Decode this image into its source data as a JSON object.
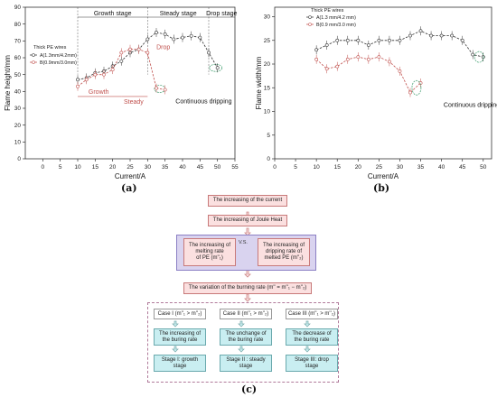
{
  "chart_data": [
    {
      "type": "line",
      "panel_label": "(a)",
      "xlabel": "Current/A",
      "ylabel": "Flame height/mm",
      "xlim": [
        -5,
        55
      ],
      "ylim": [
        0,
        90
      ],
      "x_ticks": [
        0,
        5,
        10,
        15,
        20,
        25,
        30,
        35,
        40,
        45,
        50,
        55
      ],
      "y_ticks": [
        0,
        10,
        20,
        30,
        40,
        50,
        60,
        70,
        80,
        90
      ],
      "legend_title": "Thick PE wires",
      "series": [
        {
          "name": "A(1.3mm/4.2mm)",
          "color": "#333333",
          "style": "dashed",
          "x": [
            10,
            12.5,
            15,
            17.5,
            20,
            22.5,
            25,
            27.5,
            30,
            32.5,
            35,
            37.5,
            40,
            42.5,
            45,
            47.5,
            50
          ],
          "y": [
            47,
            48,
            51,
            52,
            55,
            58,
            63,
            65,
            71,
            75,
            74,
            71,
            72,
            73,
            72,
            63,
            54
          ]
        },
        {
          "name": "B(0.9mm/3.0mm)",
          "color": "#c0504d",
          "style": "dashed",
          "x": [
            10,
            12.5,
            15,
            17.5,
            20,
            22.5,
            25,
            27.5,
            30,
            32.5,
            35
          ],
          "y": [
            43,
            47,
            50,
            50,
            53,
            63,
            65,
            65,
            63,
            42,
            41
          ]
        }
      ],
      "annotations": {
        "stages": [
          "Growth stage",
          "Steady stage",
          "Drop stage"
        ],
        "growth": "Growth",
        "steady": "Steady",
        "drop": "Drop",
        "dripping": "Continuous dripping"
      }
    },
    {
      "type": "line",
      "panel_label": "(b)",
      "xlabel": "Current/A",
      "ylabel": "Flame width/mm",
      "xlim": [
        0,
        52
      ],
      "ylim": [
        0,
        32
      ],
      "x_ticks": [
        0,
        5,
        10,
        15,
        20,
        25,
        30,
        35,
        40,
        45,
        50
      ],
      "y_ticks": [
        0,
        5,
        10,
        15,
        20,
        25,
        30
      ],
      "legend_title": "Thick PE wires",
      "series": [
        {
          "name": "A(1.3 mm/4.2 mm)",
          "color": "#333333",
          "style": "dashed",
          "x": [
            10,
            12.5,
            15,
            17.5,
            20,
            22.5,
            25,
            27.5,
            30,
            32.5,
            35,
            37.5,
            40,
            42.5,
            45,
            47.5,
            50
          ],
          "y": [
            23,
            24,
            25,
            25,
            25,
            24,
            25,
            25,
            25,
            26,
            27,
            26,
            26,
            26,
            25,
            22,
            21.5
          ]
        },
        {
          "name": "B(0.9 mm/3.0 mm)",
          "color": "#c0504d",
          "style": "dashed",
          "x": [
            10,
            12.5,
            15,
            17.5,
            20,
            22.5,
            25,
            27.5,
            30,
            32.5,
            35
          ],
          "y": [
            21,
            19,
            19.5,
            21,
            21.5,
            21,
            21.5,
            20.5,
            18.5,
            14,
            16
          ]
        }
      ],
      "annotations": {
        "dripping": "Continuous dripping"
      }
    }
  ],
  "flowchart": {
    "panel_label": "(c)",
    "n1": "The increasing of the current",
    "n2": "The increasing of Joule Heat",
    "left_a": "The increasing of",
    "left_b": "melting rate",
    "left_c": "of PE (m''₁)",
    "vs": "V.S.",
    "right_a": "The increasing of",
    "right_b": "dripping rate of",
    "right_c": "melted PE (m''₂)",
    "n4": "The variation of the burning rate  (m'' = m''₁ − m''₂)",
    "cases": [
      {
        "case": "Case I  (m''₁ > m''₂)",
        "effect_a": "The increasing of",
        "effect_b": "the buring rate",
        "stage_a": "Stage I: growth",
        "stage_b": "stage"
      },
      {
        "case": "Case II  (m''₁ > m''₂)",
        "effect_a": "The unchange of",
        "effect_b": "the buring rate",
        "stage_a": "Stage II : steady",
        "stage_b": "stage"
      },
      {
        "case": "Case III  (m''₁ > m''₂)",
        "effect_a": "The decrease of",
        "effect_b": "the buring rate",
        "stage_a": "Stage III: drop",
        "stage_b": "stage"
      }
    ]
  }
}
